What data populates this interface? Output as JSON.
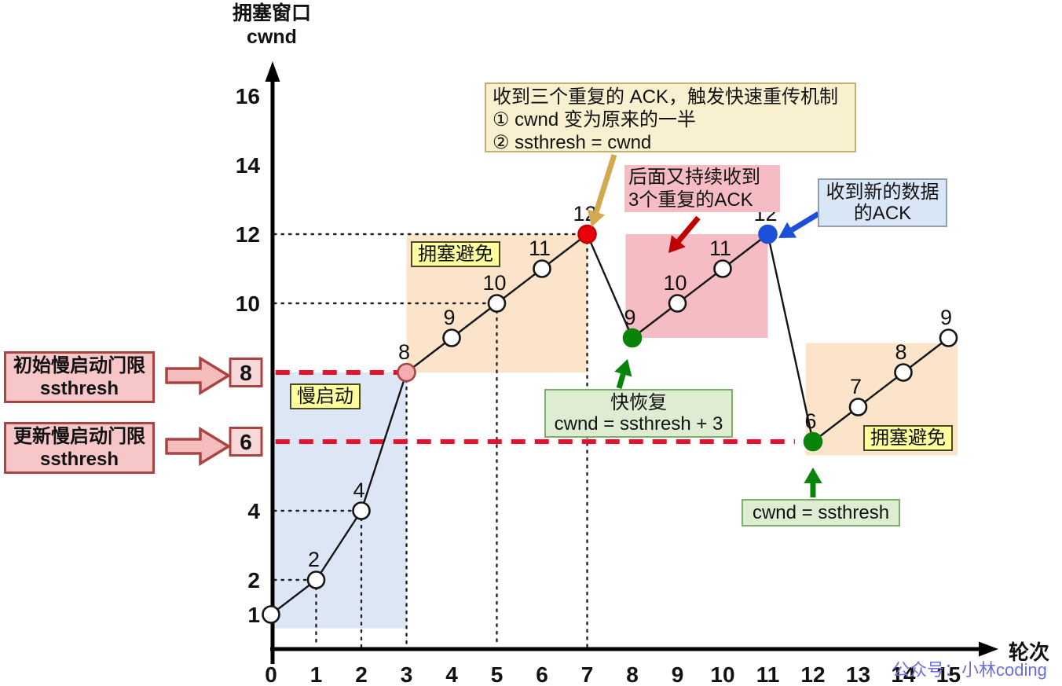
{
  "header": {
    "y_axis_title_line1": "拥塞窗口",
    "y_axis_title_line2": "cwnd",
    "x_axis_title": "轮次"
  },
  "watermark": "公众号：小林coding",
  "chart_data": {
    "type": "line",
    "x": [
      0,
      1,
      2,
      3,
      4,
      5,
      6,
      7,
      8,
      9,
      10,
      11,
      12,
      13,
      14,
      15
    ],
    "series": [
      {
        "name": "cwnd",
        "values": [
          1,
          2,
          4,
          8,
          9,
          10,
          11,
          12,
          9,
          10,
          11,
          12,
          6,
          7,
          8,
          9
        ]
      }
    ],
    "xlabel": "轮次",
    "ylabel": "拥塞窗口 cwnd",
    "xlim": [
      0,
      15.8
    ],
    "ylim": [
      0,
      16.9
    ],
    "x_ticks": [
      0,
      1,
      2,
      3,
      4,
      5,
      6,
      7,
      8,
      9,
      10,
      11,
      12,
      13,
      14,
      15
    ],
    "y_ticks": [
      {
        "value": 16
      },
      {
        "value": 14
      },
      {
        "value": 12
      },
      {
        "value": 10
      },
      {
        "value": 8,
        "boxed": true
      },
      {
        "value": 6,
        "boxed": true
      },
      {
        "value": 4
      },
      {
        "value": 2
      },
      {
        "value": 1
      }
    ],
    "special_points": {
      "3": "pink",
      "7": "red",
      "8": "green",
      "11": "blue",
      "12": "green"
    },
    "threshold_lines": [
      {
        "y": 8,
        "x_start": 0.1,
        "x_end": 3
      },
      {
        "y": 6,
        "x_start": 0.1,
        "x_end": 11.6
      }
    ],
    "guide_lines": {
      "vertical_x": [
        1,
        2,
        3,
        5,
        7
      ],
      "horizontal_y": [
        2,
        4,
        10,
        12
      ]
    },
    "regions": [
      {
        "label": "慢启动",
        "x0": 0,
        "x1": 3,
        "y0": 0.6,
        "y1": 8,
        "color": "#DCE6F5"
      },
      {
        "label": "拥塞避免",
        "x0": 3,
        "x1": 7,
        "y0": 8,
        "y1": 12,
        "color": "#FBE4C9"
      },
      {
        "label": "",
        "x0": 7.85,
        "x1": 11,
        "y0": 9,
        "y1": 12,
        "color": "#F5BDC3"
      },
      {
        "label": "拥塞避免",
        "x0": 11.84,
        "x1": 15.2,
        "y0": 5.6,
        "y1": 8.85,
        "color": "#FBE4C9"
      }
    ]
  },
  "annotations": {
    "fast_retransmit": {
      "line1": "收到三个重复的 ACK，触发快速重传机制",
      "line2": "① cwnd 变为原来的一半",
      "line3": "② ssthresh = cwnd"
    },
    "dup_ack": {
      "line1": "后面又持续收到",
      "line2": "3个重复的ACK"
    },
    "new_ack": {
      "line1": "收到新的数据",
      "line2": "的ACK"
    },
    "fast_recovery": {
      "line1": "快恢复",
      "line2": "cwnd = ssthresh + 3"
    },
    "cwnd_ssthresh": {
      "text": "cwnd = ssthresh"
    },
    "initial_ssthresh": {
      "line1": "初始慢启动门限",
      "line2": "ssthresh",
      "target_value": "8"
    },
    "updated_ssthresh": {
      "line1": "更新慢启动门限",
      "line2": "ssthresh",
      "target_value": "6"
    }
  },
  "colors": {
    "red": "#E8112D",
    "red_point": "#E8000B",
    "green": "#0A830A",
    "blue": "#1D4FD7",
    "tan_arrow": "#D2A94E",
    "dark_red_arrow": "#C00000",
    "pink_point_fill": "#F5ADB5",
    "pink_point_stroke": "#A94442",
    "slow_start_region": "#DCE6F5",
    "congestion_avoidance_region": "#FBE4C9",
    "fast_recovery_region": "#F5BDC3",
    "yellow_label_bg": "#FFFF9E",
    "boxed_tick_bg": "#F8D8D9",
    "boxed_tick_border": "#A94442",
    "watermark_color": "#6E6EDB",
    "line_color": "#151515"
  }
}
